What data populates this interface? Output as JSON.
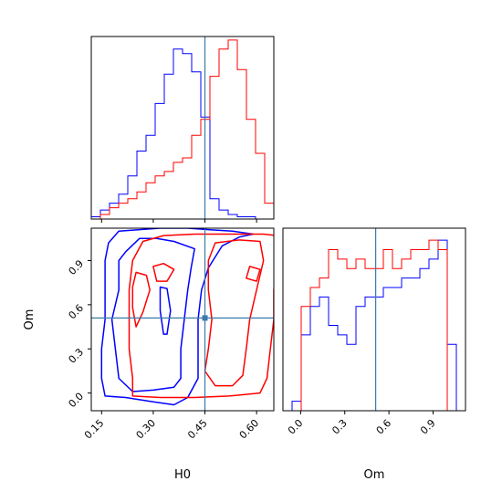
{
  "chart_data": {
    "type": "corner",
    "parameters": [
      "H0",
      "Om"
    ],
    "xlabels": {
      "h0": "H0",
      "om": "Om"
    },
    "ylabel": "Om",
    "h0_ticks": [
      "0.15",
      "0.30",
      "0.45",
      "0.60"
    ],
    "om_ticks": [
      "0.0",
      "0.3",
      "0.6",
      "0.9"
    ],
    "h0_range": [
      0.12,
      0.65
    ],
    "om_range": [
      -0.12,
      1.12
    ],
    "truth": {
      "H0": 0.45,
      "Om": 0.51
    },
    "colors": {
      "blue": "#0000ff",
      "red": "#ff0000",
      "truth": "#3a7bab"
    },
    "h0_hist": {
      "bins": [
        0.12,
        0.1465,
        0.173,
        0.1995,
        0.226,
        0.2525,
        0.279,
        0.3055,
        0.332,
        0.3585,
        0.385,
        0.4115,
        0.438,
        0.4645,
        0.491,
        0.5175,
        0.544,
        0.5705,
        0.597,
        0.6235,
        0.65
      ],
      "blue": [
        1,
        4,
        7,
        11,
        19,
        30,
        37,
        51,
        64,
        75,
        73,
        65,
        45,
        9,
        4,
        2,
        1,
        1,
        0,
        0
      ],
      "red": [
        0,
        2,
        5,
        7,
        9,
        12,
        16,
        19,
        21,
        25,
        27,
        37,
        44,
        63,
        75,
        79,
        66,
        44,
        29,
        7
      ]
    },
    "om_hist": {
      "bins": [
        -0.12,
        -0.058,
        0.004,
        0.066,
        0.128,
        0.19,
        0.252,
        0.314,
        0.376,
        0.438,
        0.5,
        0.562,
        0.624,
        0.686,
        0.748,
        0.81,
        0.872,
        0.934,
        0.996,
        1.058,
        1.12
      ],
      "blue": [
        0,
        1,
        8,
        11,
        12,
        9,
        8,
        7,
        11,
        12,
        12,
        13,
        13,
        14,
        14,
        15,
        16,
        18,
        7,
        0
      ],
      "red": [
        0,
        0,
        11,
        13,
        14,
        17,
        16,
        15,
        16,
        15,
        15,
        17,
        15,
        16,
        17,
        17,
        18,
        17,
        0,
        0
      ]
    },
    "contours": {
      "blue_outer": [
        [
          0.2,
          1.1
        ],
        [
          0.26,
          1.11
        ],
        [
          0.32,
          1.12
        ],
        [
          0.4,
          1.12
        ],
        [
          0.46,
          1.11
        ],
        [
          0.53,
          1.1
        ],
        [
          0.59,
          1.08
        ],
        [
          0.55,
          1.06
        ],
        [
          0.5,
          1.0
        ],
        [
          0.46,
          0.85
        ],
        [
          0.44,
          0.7
        ],
        [
          0.43,
          0.5
        ],
        [
          0.43,
          0.3
        ],
        [
          0.43,
          0.1
        ],
        [
          0.4,
          -0.03
        ],
        [
          0.36,
          -0.08
        ],
        [
          0.3,
          -0.06
        ],
        [
          0.22,
          -0.03
        ],
        [
          0.16,
          -0.02
        ],
        [
          0.15,
          0.1
        ],
        [
          0.15,
          0.3
        ],
        [
          0.16,
          0.5
        ],
        [
          0.16,
          0.7
        ],
        [
          0.16,
          0.9
        ],
        [
          0.17,
          1.02
        ],
        [
          0.2,
          1.1
        ]
      ],
      "blue_inner": [
        [
          0.22,
          0.96
        ],
        [
          0.26,
          1.05
        ],
        [
          0.31,
          1.05
        ],
        [
          0.36,
          1.03
        ],
        [
          0.42,
          0.98
        ],
        [
          0.41,
          0.85
        ],
        [
          0.4,
          0.7
        ],
        [
          0.39,
          0.5
        ],
        [
          0.38,
          0.3
        ],
        [
          0.38,
          0.1
        ],
        [
          0.36,
          0.04
        ],
        [
          0.3,
          0.02
        ],
        [
          0.24,
          0.01
        ],
        [
          0.2,
          0.1
        ],
        [
          0.19,
          0.3
        ],
        [
          0.18,
          0.5
        ],
        [
          0.2,
          0.7
        ],
        [
          0.2,
          0.9
        ],
        [
          0.22,
          0.96
        ]
      ],
      "red_outer": [
        [
          0.33,
          1.07
        ],
        [
          0.42,
          1.08
        ],
        [
          0.52,
          1.08
        ],
        [
          0.62,
          1.08
        ],
        [
          0.66,
          1.07
        ],
        [
          0.66,
          0.9
        ],
        [
          0.65,
          0.7
        ],
        [
          0.65,
          0.5
        ],
        [
          0.64,
          0.3
        ],
        [
          0.63,
          0.1
        ],
        [
          0.61,
          0.0
        ],
        [
          0.52,
          -0.02
        ],
        [
          0.42,
          -0.03
        ],
        [
          0.32,
          -0.03
        ],
        [
          0.24,
          -0.02
        ],
        [
          0.24,
          0.1
        ],
        [
          0.23,
          0.3
        ],
        [
          0.23,
          0.5
        ],
        [
          0.23,
          0.7
        ],
        [
          0.24,
          0.9
        ],
        [
          0.27,
          1.03
        ],
        [
          0.33,
          1.07
        ]
      ],
      "red_inner": [
        [
          0.48,
          1.02
        ],
        [
          0.55,
          1.04
        ],
        [
          0.61,
          1.03
        ],
        [
          0.62,
          0.9
        ],
        [
          0.6,
          0.7
        ],
        [
          0.58,
          0.5
        ],
        [
          0.57,
          0.3
        ],
        [
          0.56,
          0.12
        ],
        [
          0.53,
          0.05
        ],
        [
          0.48,
          0.05
        ],
        [
          0.45,
          0.15
        ],
        [
          0.46,
          0.3
        ],
        [
          0.47,
          0.5
        ],
        [
          0.46,
          0.7
        ],
        [
          0.46,
          0.9
        ],
        [
          0.48,
          1.02
        ]
      ],
      "red_island_a": [
        [
          0.25,
          0.82
        ],
        [
          0.28,
          0.8
        ],
        [
          0.29,
          0.7
        ],
        [
          0.27,
          0.55
        ],
        [
          0.25,
          0.45
        ],
        [
          0.24,
          0.58
        ],
        [
          0.24,
          0.72
        ],
        [
          0.25,
          0.82
        ]
      ],
      "red_island_b": [
        [
          0.3,
          0.86
        ],
        [
          0.33,
          0.88
        ],
        [
          0.36,
          0.84
        ],
        [
          0.34,
          0.76
        ],
        [
          0.31,
          0.76
        ],
        [
          0.3,
          0.86
        ]
      ],
      "red_island_c": [
        [
          0.58,
          0.86
        ],
        [
          0.61,
          0.84
        ],
        [
          0.6,
          0.76
        ],
        [
          0.57,
          0.78
        ],
        [
          0.58,
          0.86
        ]
      ],
      "blue_island": [
        [
          0.32,
          0.72
        ],
        [
          0.34,
          0.71
        ],
        [
          0.35,
          0.56
        ],
        [
          0.34,
          0.4
        ],
        [
          0.33,
          0.4
        ],
        [
          0.32,
          0.56
        ],
        [
          0.32,
          0.72
        ]
      ]
    }
  }
}
